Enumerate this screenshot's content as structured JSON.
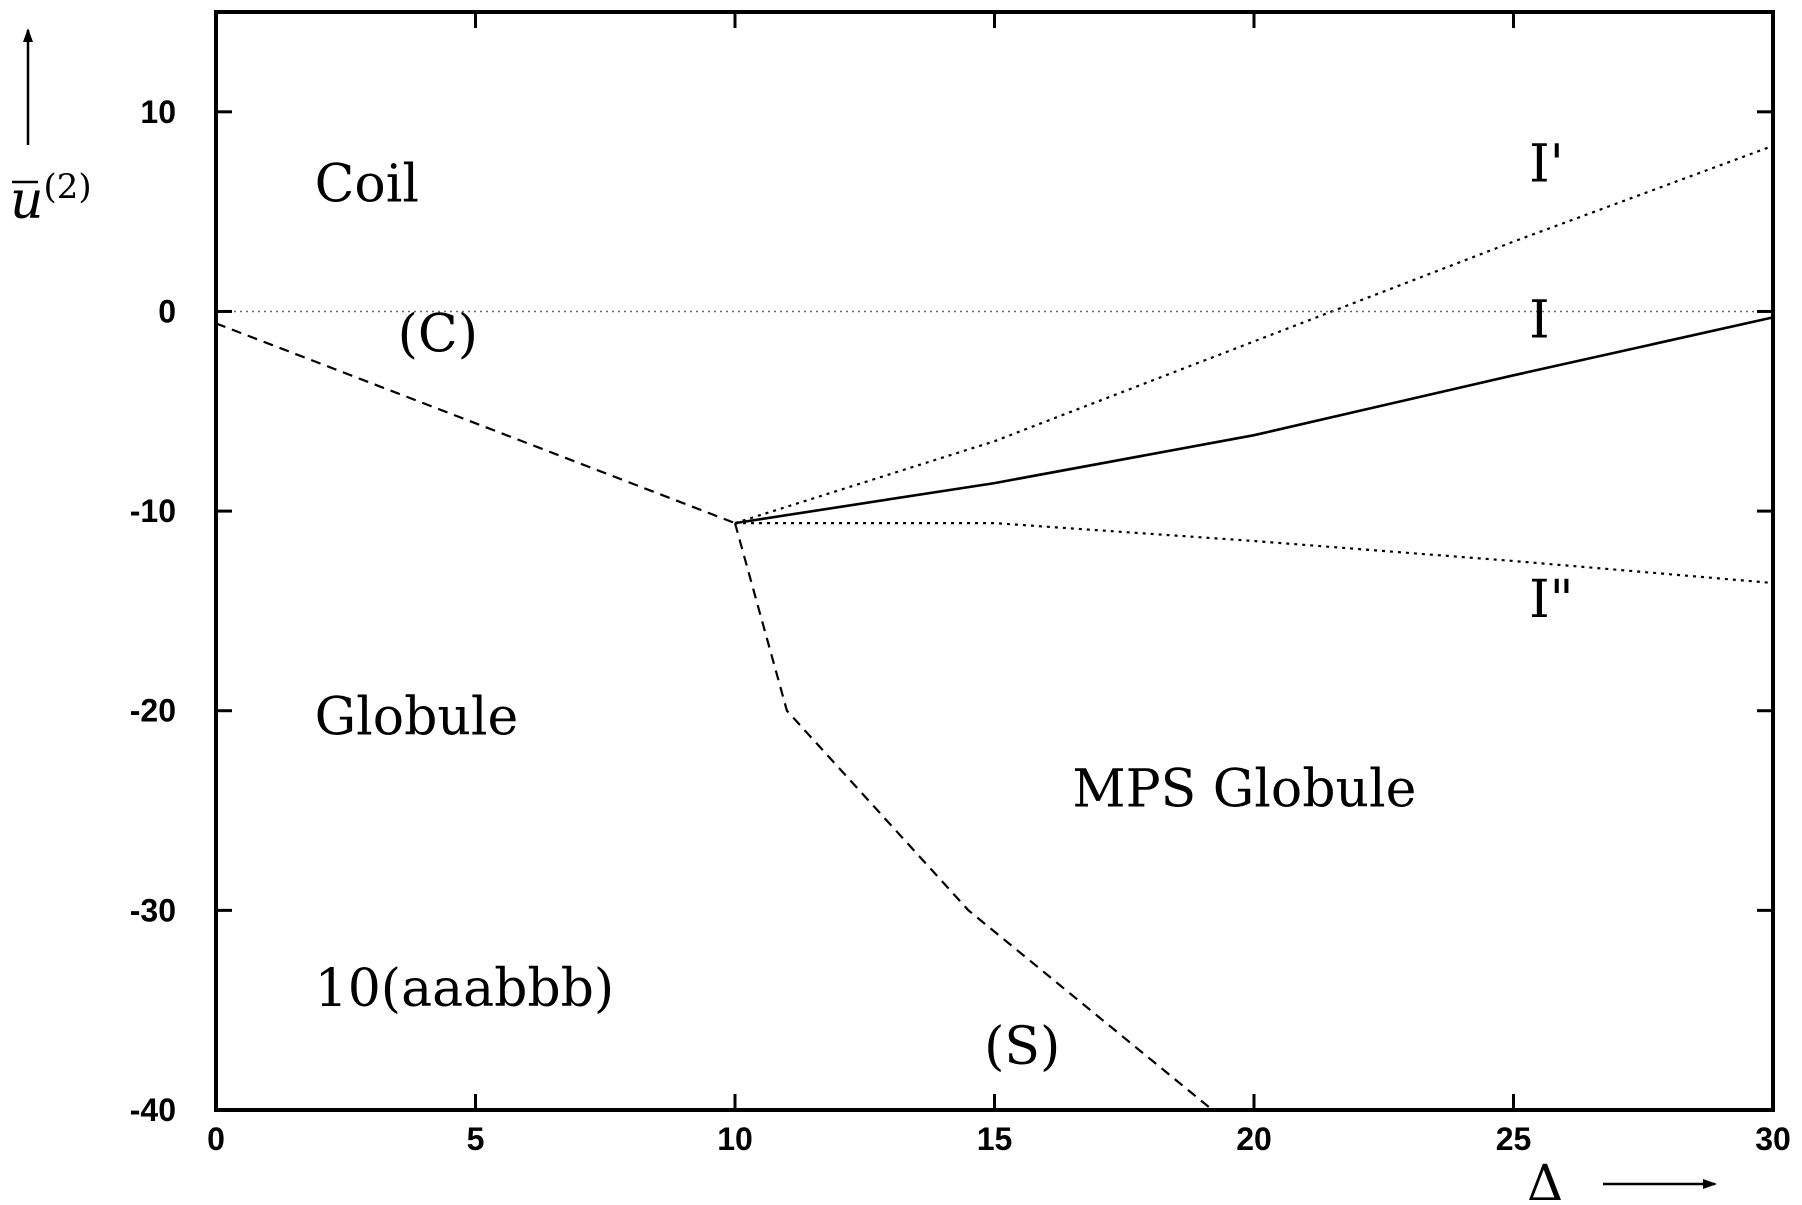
{
  "chart_data": {
    "type": "line",
    "title": "",
    "xlabel": "Δ",
    "ylabel": "ū(2)",
    "ylabel_base": "u",
    "ylabel_sup": "(2)",
    "xlim": [
      0,
      30
    ],
    "ylim": [
      -40,
      15
    ],
    "xticks": [
      0,
      5,
      10,
      15,
      20,
      25,
      30
    ],
    "yticks": [
      10,
      0,
      -10,
      -20,
      -30,
      -40
    ],
    "xtick_labels": [
      "0",
      "5",
      "10",
      "15",
      "20",
      "25",
      "30"
    ],
    "ytick_labels": [
      "10",
      "0",
      "-10",
      "-20",
      "-30",
      "-40"
    ],
    "grid": false,
    "legend": "none",
    "series": [
      {
        "name": "(C)",
        "style": "dashed",
        "x": [
          0,
          10
        ],
        "y": [
          -0.6,
          -10.6
        ]
      },
      {
        "name": "(S)",
        "style": "dashed",
        "x": [
          10,
          11,
          14.5,
          19.2
        ],
        "y": [
          -10.6,
          -20,
          -30,
          -40
        ]
      },
      {
        "name": "I",
        "style": "solid",
        "x": [
          10,
          15,
          20,
          25,
          30
        ],
        "y": [
          -10.6,
          -8.6,
          -6.2,
          -3.2,
          -0.3
        ]
      },
      {
        "name": "I'",
        "style": "dotted",
        "x": [
          10,
          15,
          20,
          25,
          30
        ],
        "y": [
          -10.6,
          -6.5,
          -1.5,
          3.5,
          8.3
        ]
      },
      {
        "name": "I''",
        "style": "dotted",
        "x": [
          10,
          15,
          20,
          25,
          30
        ],
        "y": [
          -10.6,
          -10.6,
          -11.5,
          -12.5,
          -13.6
        ]
      },
      {
        "name": "",
        "style": "thin-dotted",
        "x": [
          0,
          30
        ],
        "y": [
          0,
          0
        ]
      }
    ],
    "annotations": [
      {
        "text": "Coil",
        "x": 1.9,
        "y": 5.5
      },
      {
        "text": "(C)",
        "x": 3.5,
        "y": -2.0
      },
      {
        "text": "I'",
        "x": 25.3,
        "y": 6.5
      },
      {
        "text": "I",
        "x": 25.3,
        "y": -1.3
      },
      {
        "text": "I\"",
        "x": 25.3,
        "y": -15.3
      },
      {
        "text": "Globule",
        "x": 1.9,
        "y": -21.2
      },
      {
        "text": "MPS Globule",
        "x": 16.5,
        "y": -24.8
      },
      {
        "text": "10(aaabbb)",
        "x": 1.9,
        "y": -34.8
      },
      {
        "text": "(S)",
        "x": 14.8,
        "y": -37.7
      }
    ]
  }
}
